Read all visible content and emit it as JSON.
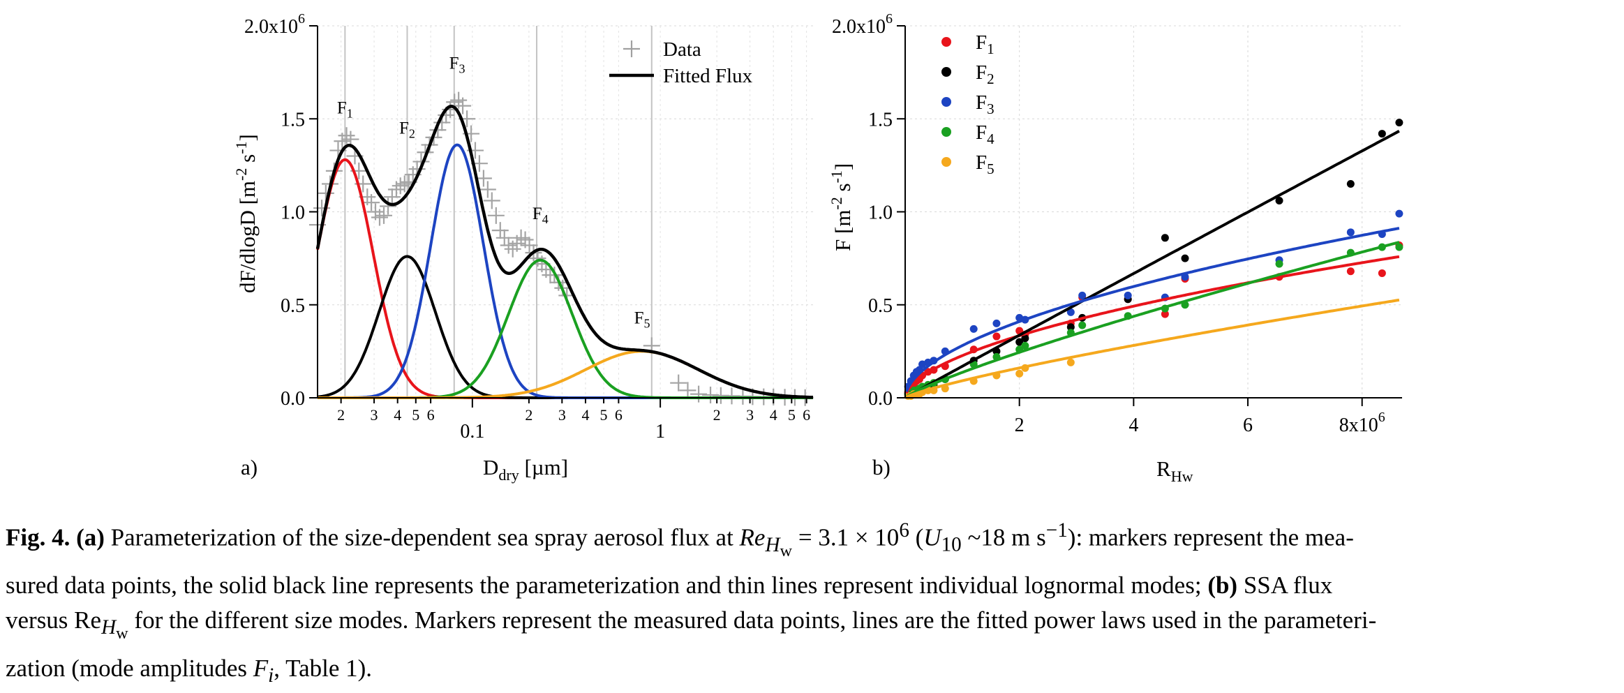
{
  "chart_data": [
    {
      "type": "line",
      "panel_label": "a)",
      "xlabel": "D",
      "xlabel_sub": "dry",
      "xlabel_unit": " [µm]",
      "ylabel": "dF/dlogD [m",
      "ylabel_sup1": "-2",
      "ylabel_mid": " s",
      "ylabel_sup2": "-1",
      "ylabel_end": "]",
      "x_scale": "log",
      "xlim": [
        0.015,
        6.5
      ],
      "ylim": [
        0,
        2000000
      ],
      "grid": true,
      "legend_position": "top-right",
      "legend": [
        {
          "key": "data",
          "label": "Data",
          "marker": "plus",
          "color": "#a0a0a0"
        },
        {
          "key": "fit",
          "label": "Fitted Flux",
          "marker": "line",
          "color": "#000000"
        }
      ],
      "y_ticks": [
        {
          "value": 0,
          "label": "0.0"
        },
        {
          "value": 500000,
          "label": "0.5"
        },
        {
          "value": 1000000,
          "label": "1.0"
        },
        {
          "value": 1500000,
          "label": "1.5"
        },
        {
          "value": 2000000,
          "label": "2.0x10",
          "exp": "6"
        }
      ],
      "x_major_ticks": [
        {
          "value": 0.1,
          "label": "0.1"
        },
        {
          "value": 1,
          "label": "1"
        }
      ],
      "x_minor_ticks": [
        {
          "value": 0.02,
          "label": "2"
        },
        {
          "value": 0.03,
          "label": "3"
        },
        {
          "value": 0.04,
          "label": "4"
        },
        {
          "value": 0.05,
          "label": "5"
        },
        {
          "value": 0.06,
          "label": "6"
        },
        {
          "value": 0.2,
          "label": "2"
        },
        {
          "value": 0.3,
          "label": "3"
        },
        {
          "value": 0.4,
          "label": "4"
        },
        {
          "value": 0.5,
          "label": "5"
        },
        {
          "value": 0.6,
          "label": "6"
        },
        {
          "value": 2,
          "label": "2"
        },
        {
          "value": 3,
          "label": "3"
        },
        {
          "value": 4,
          "label": "4"
        },
        {
          "value": 5,
          "label": "5"
        },
        {
          "value": 6,
          "label": "6"
        }
      ],
      "vertical_markers": [
        0.021,
        0.045,
        0.08,
        0.22,
        0.9
      ],
      "modes": [
        {
          "name": "F",
          "sub": "1",
          "color": "#e8141b",
          "center": 0.021,
          "amp": 1280000,
          "sigma": 0.15,
          "label_at": [
            0.021,
            1530000
          ]
        },
        {
          "name": "F",
          "sub": "2",
          "color": "#000000",
          "center": 0.045,
          "amp": 760000,
          "sigma": 0.15,
          "label_at": [
            0.045,
            1420000
          ]
        },
        {
          "name": "F",
          "sub": "3",
          "color": "#1d44c2",
          "center": 0.083,
          "amp": 1360000,
          "sigma": 0.14,
          "label_at": [
            0.083,
            1770000
          ]
        },
        {
          "name": "F",
          "sub": "4",
          "color": "#1aa021",
          "center": 0.23,
          "amp": 740000,
          "sigma": 0.17,
          "label_at": [
            0.23,
            960000
          ]
        },
        {
          "name": "F",
          "sub": "5",
          "color": "#f5a81d",
          "center": 0.8,
          "amp": 250000,
          "sigma": 0.3,
          "label_at": [
            0.8,
            400000
          ]
        }
      ],
      "data_points": [
        [
          0.015,
          0.93
        ],
        [
          0.0158,
          1.02
        ],
        [
          0.0166,
          1.1
        ],
        [
          0.0175,
          1.15
        ],
        [
          0.0184,
          1.22
        ],
        [
          0.0193,
          1.33
        ],
        [
          0.0203,
          1.38
        ],
        [
          0.0214,
          1.41
        ],
        [
          0.0225,
          1.39
        ],
        [
          0.0237,
          1.3
        ],
        [
          0.0249,
          1.22
        ],
        [
          0.0262,
          1.15
        ],
        [
          0.0276,
          1.08
        ],
        [
          0.029,
          1.05
        ],
        [
          0.0305,
          1.0
        ],
        [
          0.0321,
          0.97
        ],
        [
          0.0338,
          0.98
        ],
        [
          0.0356,
          1.03
        ],
        [
          0.0374,
          1.08
        ],
        [
          0.0394,
          1.12
        ],
        [
          0.0414,
          1.14
        ],
        [
          0.0436,
          1.15
        ],
        [
          0.0459,
          1.16
        ],
        [
          0.0483,
          1.2
        ],
        [
          0.0508,
          1.23
        ],
        [
          0.0534,
          1.27
        ],
        [
          0.0562,
          1.32
        ],
        [
          0.0592,
          1.36
        ],
        [
          0.0623,
          1.4
        ],
        [
          0.0655,
          1.44
        ],
        [
          0.0689,
          1.48
        ],
        [
          0.0725,
          1.52
        ],
        [
          0.0763,
          1.55
        ],
        [
          0.0803,
          1.59
        ],
        [
          0.0845,
          1.6
        ],
        [
          0.0889,
          1.57
        ],
        [
          0.0936,
          1.5
        ],
        [
          0.0985,
          1.42
        ],
        [
          0.1036,
          1.33
        ],
        [
          0.109,
          1.26
        ],
        [
          0.1147,
          1.18
        ],
        [
          0.1207,
          1.12
        ],
        [
          0.127,
          1.06
        ],
        [
          0.1337,
          0.98
        ],
        [
          0.1407,
          0.9
        ],
        [
          0.1481,
          0.86
        ],
        [
          0.1558,
          0.82
        ],
        [
          0.164,
          0.8
        ],
        [
          0.1726,
          0.83
        ],
        [
          0.1816,
          0.86
        ],
        [
          0.1911,
          0.85
        ],
        [
          0.2011,
          0.82
        ],
        [
          0.2116,
          0.78
        ],
        [
          0.2227,
          0.75
        ],
        [
          0.2344,
          0.72
        ],
        [
          0.2467,
          0.69
        ],
        [
          0.2596,
          0.66
        ],
        [
          0.2732,
          0.66
        ],
        [
          0.2875,
          0.62
        ],
        [
          0.3026,
          0.59
        ],
        [
          0.3184,
          0.55
        ],
        [
          0.9,
          0.28
        ],
        [
          1.25,
          0.08
        ],
        [
          1.4,
          0.04
        ],
        [
          1.6,
          0.02
        ],
        [
          1.85,
          0.015
        ],
        [
          2.1,
          0.012
        ],
        [
          2.4,
          0.01
        ],
        [
          2.75,
          0.008
        ],
        [
          3.1,
          0.006
        ],
        [
          3.55,
          0.005
        ],
        [
          4.0,
          0.004
        ],
        [
          4.6,
          0.003
        ],
        [
          5.2,
          0.002
        ],
        [
          5.9,
          0.001
        ]
      ]
    },
    {
      "type": "scatter",
      "panel_label": "b)",
      "xlabel": "R",
      "xlabel_sub": "Hw",
      "ylabel": "F [m",
      "ylabel_sup1": "-2",
      "ylabel_mid": " s",
      "ylabel_sup2": "-1",
      "ylabel_end": "]",
      "xlim": [
        0,
        8700000
      ],
      "ylim": [
        0,
        2000000
      ],
      "grid": true,
      "legend_position": "top-left",
      "x_ticks": [
        {
          "value": 2000000,
          "label": "2"
        },
        {
          "value": 4000000,
          "label": "4"
        },
        {
          "value": 6000000,
          "label": "6"
        },
        {
          "value": 8000000,
          "label": "8x10",
          "exp": "6"
        }
      ],
      "y_ticks": [
        {
          "value": 0,
          "label": "0.0"
        },
        {
          "value": 500000,
          "label": "0.5"
        },
        {
          "value": 1000000,
          "label": "1.0"
        },
        {
          "value": 1500000,
          "label": "1.5"
        },
        {
          "value": 2000000,
          "label": "2.0x10",
          "exp": "6"
        }
      ],
      "x_values": [
        0.05,
        0.1,
        0.15,
        0.2,
        0.25,
        0.3,
        0.4,
        0.5,
        0.7,
        1.2,
        1.6,
        2.0,
        2.1,
        2.9,
        3.1,
        3.9,
        4.55,
        4.9,
        6.55,
        7.8,
        8.35,
        8.65
      ],
      "series": [
        {
          "name": "F",
          "sub": "1",
          "color": "#e8141b",
          "fit_coef": 0.2267,
          "fit_exp": 0.56,
          "values": [
            0.03,
            0.05,
            0.07,
            0.09,
            0.1,
            0.12,
            0.14,
            0.15,
            0.17,
            0.26,
            0.33,
            0.36,
            0.34,
            0.4,
            0.54,
            0.53,
            0.45,
            0.64,
            0.65,
            0.68,
            0.67,
            0.82
          ]
        },
        {
          "name": "F",
          "sub": "2",
          "color": "#000000",
          "fit_coef": 0.1694,
          "fit_exp": 0.99,
          "values": [
            0.02,
            0.03,
            0.03,
            0.04,
            0.04,
            0.05,
            0.06,
            0.07,
            0.1,
            0.2,
            0.25,
            0.3,
            0.32,
            0.38,
            0.43,
            0.53,
            0.86,
            0.75,
            1.06,
            1.15,
            1.42,
            1.48
          ]
        },
        {
          "name": "F",
          "sub": "3",
          "color": "#1d44c2",
          "fit_coef": 0.2807,
          "fit_exp": 0.546,
          "values": [
            0.06,
            0.09,
            0.12,
            0.14,
            0.15,
            0.18,
            0.19,
            0.2,
            0.25,
            0.37,
            0.4,
            0.43,
            0.42,
            0.46,
            0.55,
            0.55,
            0.54,
            0.65,
            0.74,
            0.89,
            0.88,
            0.99
          ]
        },
        {
          "name": "F",
          "sub": "4",
          "color": "#1aa021",
          "fit_coef": 0.1366,
          "fit_exp": 0.84,
          "values": [
            0.02,
            0.03,
            0.04,
            0.04,
            0.05,
            0.06,
            0.07,
            0.08,
            0.1,
            0.18,
            0.22,
            0.26,
            0.28,
            0.35,
            0.39,
            0.44,
            0.48,
            0.5,
            0.72,
            0.78,
            0.81,
            0.81
          ]
        },
        {
          "name": "F",
          "sub": "5",
          "color": "#f5a81d",
          "fit_coef": 0.0916,
          "fit_exp": 0.81,
          "values": [
            0.01,
            0.01,
            0.02,
            0.02,
            0.02,
            0.03,
            0.04,
            0.04,
            0.05,
            0.09,
            0.12,
            0.13,
            0.16,
            0.19,
            null,
            null,
            null,
            null,
            null,
            null,
            null,
            null
          ]
        }
      ]
    }
  ],
  "caption": {
    "fig_label": "Fig. 4.",
    "part_a": "(a)",
    "l1_a": " Parameterization of the size-dependent sea spray aerosol flux at ",
    "re_italic": "Re",
    "re_sub": "H",
    "re_sub2": "w",
    "l1_b": " = 3.1 × 10",
    "l1_exp": "6",
    "l1_c": " (",
    "u_italic": "U",
    "u_sub": "10",
    "l1_d": " ~18 m s",
    "l1_exp2": "−1",
    "l1_e": "): markers represent the mea-",
    "l2": "sured data points, the solid black line represents the parameterization and thin lines represent individual lognormal modes; ",
    "part_b": "(b)",
    "l2_b": " SSA flux",
    "l3_a": "versus Re",
    "l3_sub": "H",
    "l3_sub2": "w",
    "l3_b": " for the different size modes. Markers represent the measured data points, lines are the fitted power laws used in the parameteri-",
    "l4_a": "zation (mode amplitudes ",
    "fi_italic": "F",
    "fi_sub": "i",
    "l4_b": ", Table 1)."
  }
}
